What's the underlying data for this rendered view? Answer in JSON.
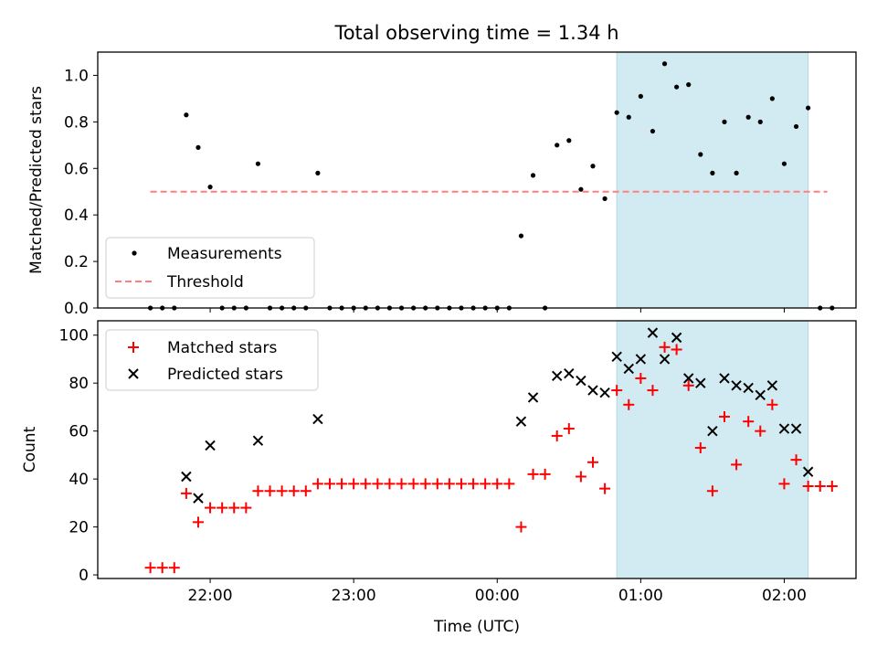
{
  "chart_data": [
    {
      "type": "scatter",
      "title": "Total observing time = 1.34 h",
      "ylabel": "Matched/Predicted stars",
      "xlabel": "",
      "ylim": [
        0,
        1.1
      ],
      "yticks": [
        "0.0",
        "0.2",
        "0.4",
        "0.6",
        "0.8",
        "1.0"
      ],
      "grid": false,
      "legend": "lower-left",
      "highlight": {
        "start": "00:50",
        "end": "02:10",
        "color": "#add8e6"
      },
      "threshold": {
        "name": "Threshold",
        "value": 0.5,
        "x": [
          "21:35",
          "02:18"
        ],
        "color": "#ff7f7f",
        "style": "dashed"
      },
      "series": [
        {
          "name": "Measurements",
          "color": "#000000",
          "marker": "dot",
          "points": [
            [
              "21:35",
              0
            ],
            [
              "21:40",
              0
            ],
            [
              "21:45",
              0
            ],
            [
              "21:50",
              0.83
            ],
            [
              "21:55",
              0.69
            ],
            [
              "22:00",
              0.52
            ],
            [
              "22:05",
              0
            ],
            [
              "22:10",
              0
            ],
            [
              "22:15",
              0
            ],
            [
              "22:20",
              0.62
            ],
            [
              "22:25",
              0
            ],
            [
              "22:30",
              0
            ],
            [
              "22:35",
              0
            ],
            [
              "22:40",
              0
            ],
            [
              "22:45",
              0.58
            ],
            [
              "22:50",
              0
            ],
            [
              "22:55",
              0
            ],
            [
              "23:00",
              0
            ],
            [
              "23:05",
              0
            ],
            [
              "23:10",
              0
            ],
            [
              "23:15",
              0
            ],
            [
              "23:20",
              0
            ],
            [
              "23:25",
              0
            ],
            [
              "23:30",
              0
            ],
            [
              "23:35",
              0
            ],
            [
              "23:40",
              0
            ],
            [
              "23:45",
              0
            ],
            [
              "23:50",
              0
            ],
            [
              "23:55",
              0
            ],
            [
              "00:00",
              0
            ],
            [
              "00:05",
              0
            ],
            [
              "00:10",
              0.31
            ],
            [
              "00:15",
              0.57
            ],
            [
              "00:20",
              0
            ],
            [
              "00:25",
              0.7
            ],
            [
              "00:30",
              0.72
            ],
            [
              "00:35",
              0.51
            ],
            [
              "00:40",
              0.61
            ],
            [
              "00:45",
              0.47
            ],
            [
              "00:50",
              0.84
            ],
            [
              "00:55",
              0.82
            ],
            [
              "01:00",
              0.91
            ],
            [
              "01:05",
              0.76
            ],
            [
              "01:10",
              1.05
            ],
            [
              "01:15",
              0.95
            ],
            [
              "01:20",
              0.96
            ],
            [
              "01:25",
              0.66
            ],
            [
              "01:30",
              0.58
            ],
            [
              "01:35",
              0.8
            ],
            [
              "01:40",
              0.58
            ],
            [
              "01:45",
              0.82
            ],
            [
              "01:50",
              0.8
            ],
            [
              "01:55",
              0.9
            ],
            [
              "02:00",
              0.62
            ],
            [
              "02:05",
              0.78
            ],
            [
              "02:10",
              0.86
            ],
            [
              "02:15",
              0
            ],
            [
              "02:20",
              0
            ]
          ]
        }
      ]
    },
    {
      "type": "scatter",
      "title": "",
      "ylabel": "Count",
      "xlabel": "Time (UTC)",
      "xticks": [
        "22:00",
        "23:00",
        "00:00",
        "01:00",
        "02:00"
      ],
      "ylim": [
        -1.5,
        106
      ],
      "yticks": [
        "0",
        "20",
        "40",
        "60",
        "80",
        "100"
      ],
      "grid": false,
      "legend": "upper-left",
      "highlight": {
        "start": "00:50",
        "end": "02:10",
        "color": "#add8e6"
      },
      "series": [
        {
          "name": "Matched stars",
          "color": "#ff0000",
          "marker": "plus",
          "points": [
            [
              "21:35",
              3
            ],
            [
              "21:40",
              3
            ],
            [
              "21:45",
              3
            ],
            [
              "21:50",
              34
            ],
            [
              "21:55",
              22
            ],
            [
              "22:00",
              28
            ],
            [
              "22:05",
              28
            ],
            [
              "22:10",
              28
            ],
            [
              "22:15",
              28
            ],
            [
              "22:20",
              35
            ],
            [
              "22:25",
              35
            ],
            [
              "22:30",
              35
            ],
            [
              "22:35",
              35
            ],
            [
              "22:40",
              35
            ],
            [
              "22:45",
              38
            ],
            [
              "22:50",
              38
            ],
            [
              "22:55",
              38
            ],
            [
              "23:00",
              38
            ],
            [
              "23:05",
              38
            ],
            [
              "23:10",
              38
            ],
            [
              "23:15",
              38
            ],
            [
              "23:20",
              38
            ],
            [
              "23:25",
              38
            ],
            [
              "23:30",
              38
            ],
            [
              "23:35",
              38
            ],
            [
              "23:40",
              38
            ],
            [
              "23:45",
              38
            ],
            [
              "23:50",
              38
            ],
            [
              "23:55",
              38
            ],
            [
              "00:00",
              38
            ],
            [
              "00:05",
              38
            ],
            [
              "00:10",
              20
            ],
            [
              "00:15",
              42
            ],
            [
              "00:20",
              42
            ],
            [
              "00:25",
              58
            ],
            [
              "00:30",
              61
            ],
            [
              "00:35",
              41
            ],
            [
              "00:40",
              47
            ],
            [
              "00:45",
              36
            ],
            [
              "00:50",
              77
            ],
            [
              "00:55",
              71
            ],
            [
              "01:00",
              82
            ],
            [
              "01:05",
              77
            ],
            [
              "01:10",
              95
            ],
            [
              "01:15",
              94
            ],
            [
              "01:20",
              79
            ],
            [
              "01:25",
              53
            ],
            [
              "01:30",
              35
            ],
            [
              "01:35",
              66
            ],
            [
              "01:40",
              46
            ],
            [
              "01:45",
              64
            ],
            [
              "01:50",
              60
            ],
            [
              "01:55",
              71
            ],
            [
              "02:00",
              38
            ],
            [
              "02:05",
              48
            ],
            [
              "02:10",
              37
            ],
            [
              "02:15",
              37
            ],
            [
              "02:20",
              37
            ]
          ]
        },
        {
          "name": "Predicted stars",
          "color": "#000000",
          "marker": "x",
          "points": [
            [
              "21:50",
              41
            ],
            [
              "21:55",
              32
            ],
            [
              "22:00",
              54
            ],
            [
              "22:20",
              56
            ],
            [
              "22:45",
              65
            ],
            [
              "00:10",
              64
            ],
            [
              "00:15",
              74
            ],
            [
              "00:25",
              83
            ],
            [
              "00:30",
              84
            ],
            [
              "00:35",
              81
            ],
            [
              "00:40",
              77
            ],
            [
              "00:45",
              76
            ],
            [
              "00:50",
              91
            ],
            [
              "00:55",
              86
            ],
            [
              "01:00",
              90
            ],
            [
              "01:05",
              101
            ],
            [
              "01:10",
              90
            ],
            [
              "01:15",
              99
            ],
            [
              "01:20",
              82
            ],
            [
              "01:25",
              80
            ],
            [
              "01:30",
              60
            ],
            [
              "01:35",
              82
            ],
            [
              "01:40",
              79
            ],
            [
              "01:45",
              78
            ],
            [
              "01:50",
              75
            ],
            [
              "01:55",
              79
            ],
            [
              "02:00",
              61
            ],
            [
              "02:05",
              61
            ],
            [
              "02:10",
              43
            ]
          ]
        }
      ]
    }
  ]
}
